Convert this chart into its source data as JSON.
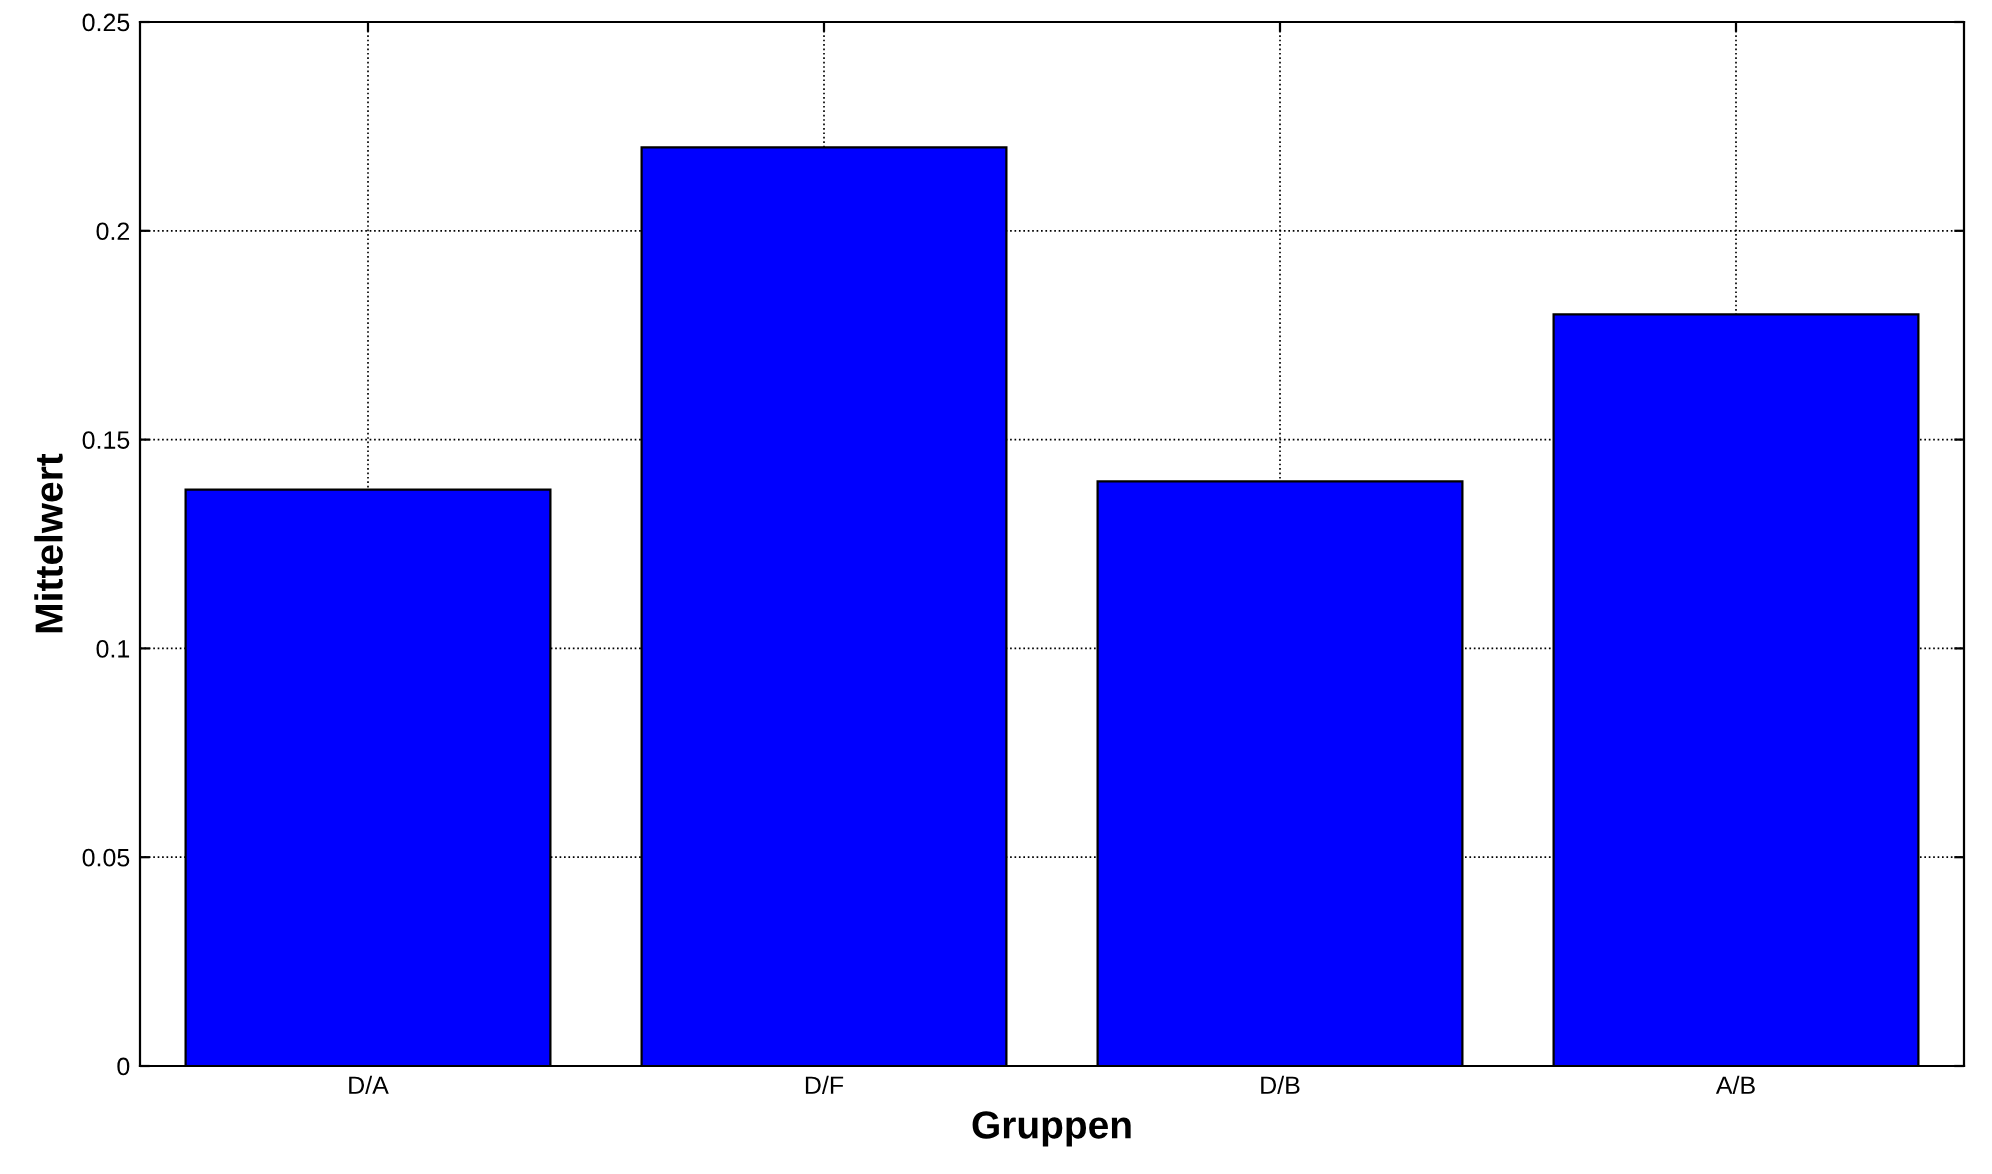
{
  "chart_data": {
    "type": "bar",
    "xlabel": "Gruppen",
    "ylabel": "Mittelwert",
    "categories": [
      "D/A",
      "D/F",
      "D/B",
      "A/B"
    ],
    "values": [
      0.138,
      0.22,
      0.14,
      0.18
    ],
    "color": "#0000ff",
    "ylim": [
      0,
      0.25
    ],
    "yticks": [
      0,
      0.05,
      0.1,
      0.15,
      0.2,
      0.25
    ],
    "grid": true
  }
}
